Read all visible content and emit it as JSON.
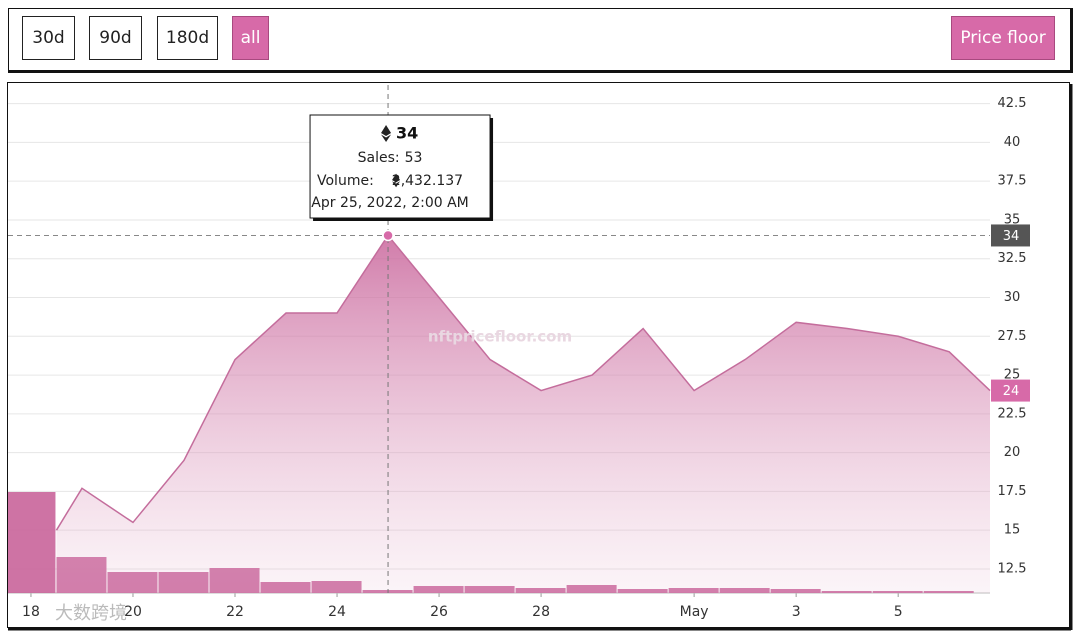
{
  "toolbar": {
    "ranges": [
      "30d",
      "90d",
      "180d",
      "all"
    ],
    "active": 3,
    "metric": "Price floor"
  },
  "chart_data": {
    "type": "area",
    "watermark": "nftpricefloor.com",
    "corner_watermark": "大数跨境",
    "x": [
      18.5,
      19,
      20,
      21,
      22,
      23,
      24,
      25,
      26,
      27,
      28,
      29,
      30,
      31,
      32,
      33,
      34,
      35,
      36,
      36.8
    ],
    "values": [
      15,
      17.7,
      15.5,
      19.5,
      26,
      29,
      29,
      34,
      30,
      26,
      24,
      25,
      28,
      24,
      26,
      28.4,
      28,
      27.5,
      26.5,
      24
    ],
    "color": "#c46d9c",
    "volume": {
      "x": [
        18,
        19,
        20,
        21,
        22,
        23,
        24,
        25,
        26,
        27,
        28,
        29,
        30,
        31,
        32,
        33,
        34,
        35,
        36
      ],
      "values": [
        101,
        36,
        21,
        21,
        25,
        11,
        12,
        3,
        7,
        7,
        5,
        8,
        4,
        5,
        5,
        4,
        2,
        2,
        2
      ],
      "color": "#c9649a",
      "y2lim": [
        0,
        508
      ]
    },
    "xlim": [
      17.55,
      36.8
    ],
    "xticks": [
      18,
      20,
      22,
      24,
      26,
      28,
      {
        "value": 31,
        "label": "May"
      },
      {
        "value": 33,
        "label": "3"
      },
      {
        "value": 35,
        "label": "5"
      }
    ],
    "ylim": [
      10.95,
      43.7
    ],
    "yticks": [
      12.5,
      15,
      17.5,
      20,
      22.5,
      25,
      27.5,
      30,
      32.5,
      35,
      37.5,
      40,
      42.5
    ],
    "grid": true,
    "tooltip": {
      "x": 25,
      "price": 34,
      "sales_label": "Sales:",
      "sales": 53,
      "volume_label": "Volume:",
      "volume": "2,432.137",
      "date": "Apr 25, 2022, 2:00 AM"
    }
  }
}
